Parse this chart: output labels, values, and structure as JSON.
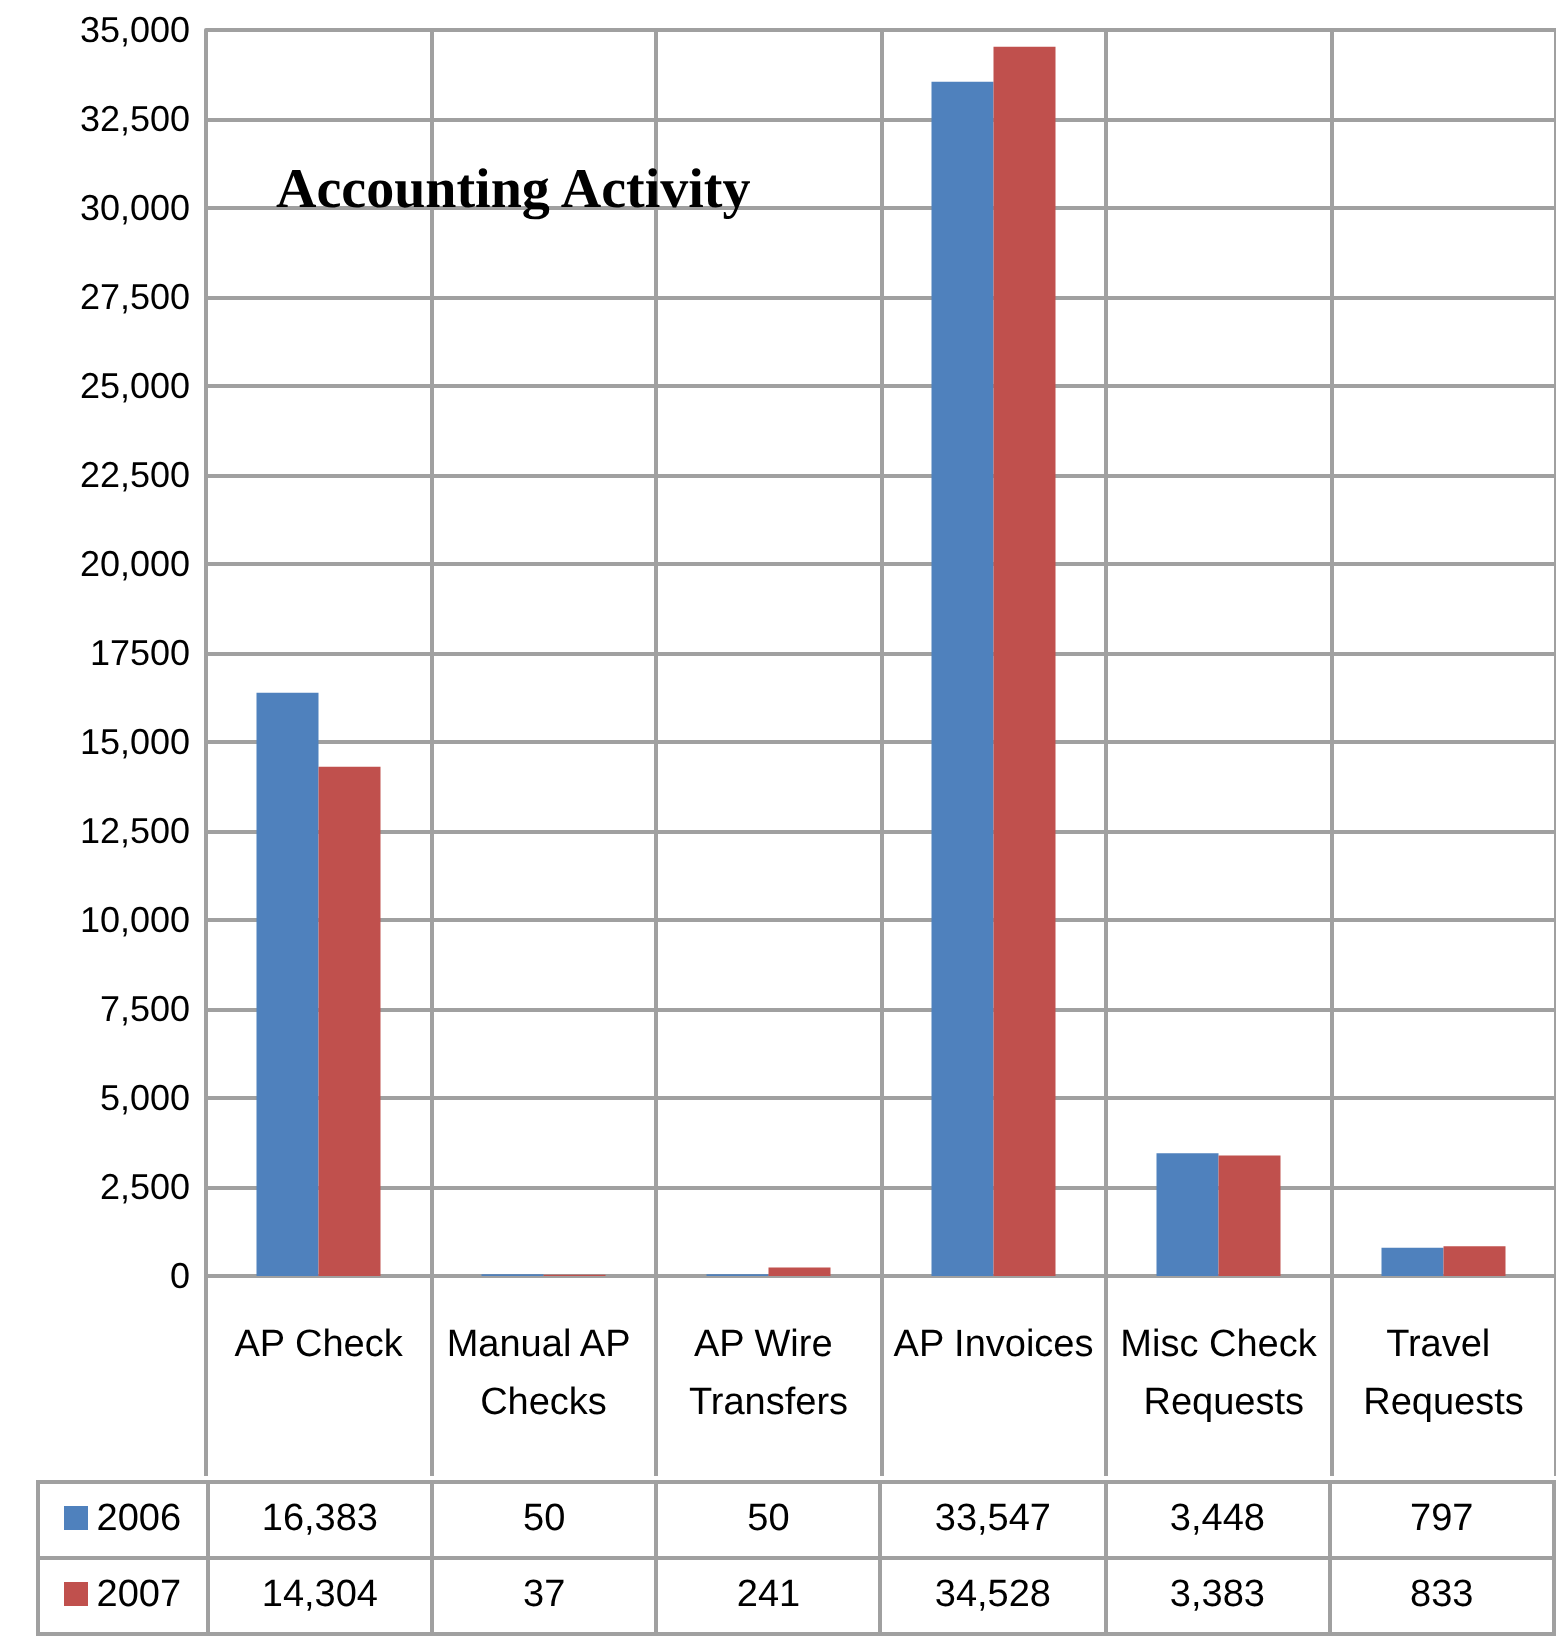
{
  "chart_data": {
    "type": "bar",
    "title": "Accounting Activity",
    "categories": [
      "AP Check",
      "Manual AP Checks",
      "AP Wire Transfers",
      "AP Invoices",
      "Misc Check Requests",
      "Travel Requests"
    ],
    "series": [
      {
        "name": "2006",
        "color": "#4f81bd",
        "values": [
          16383,
          50,
          50,
          33547,
          3448,
          797
        ],
        "value_labels": [
          "16,383",
          "50",
          "50",
          "33,547",
          "3,448",
          "797"
        ]
      },
      {
        "name": "2007",
        "color": "#c0504d",
        "values": [
          14304,
          37,
          241,
          34528,
          3383,
          833
        ],
        "value_labels": [
          "14,304",
          "37",
          "241",
          "34,528",
          "3,383",
          "833"
        ]
      }
    ],
    "ylim": [
      0,
      35000
    ],
    "yticks": [
      {
        "value": 0,
        "label": "0"
      },
      {
        "value": 2500,
        "label": "2,500"
      },
      {
        "value": 5000,
        "label": "5,000"
      },
      {
        "value": 7500,
        "label": "7,500"
      },
      {
        "value": 10000,
        "label": "10,000"
      },
      {
        "value": 12500,
        "label": "12,500"
      },
      {
        "value": 15000,
        "label": "15,000"
      },
      {
        "value": 17500,
        "label": "17500"
      },
      {
        "value": 20000,
        "label": "20,000"
      },
      {
        "value": 22500,
        "label": "22,500"
      },
      {
        "value": 25000,
        "label": "25,000"
      },
      {
        "value": 27500,
        "label": "27,500"
      },
      {
        "value": 30000,
        "label": "30,000"
      },
      {
        "value": 32500,
        "label": "32,500"
      },
      {
        "value": 35000,
        "label": "35,000"
      }
    ],
    "grid": true,
    "legend": "bottom"
  }
}
